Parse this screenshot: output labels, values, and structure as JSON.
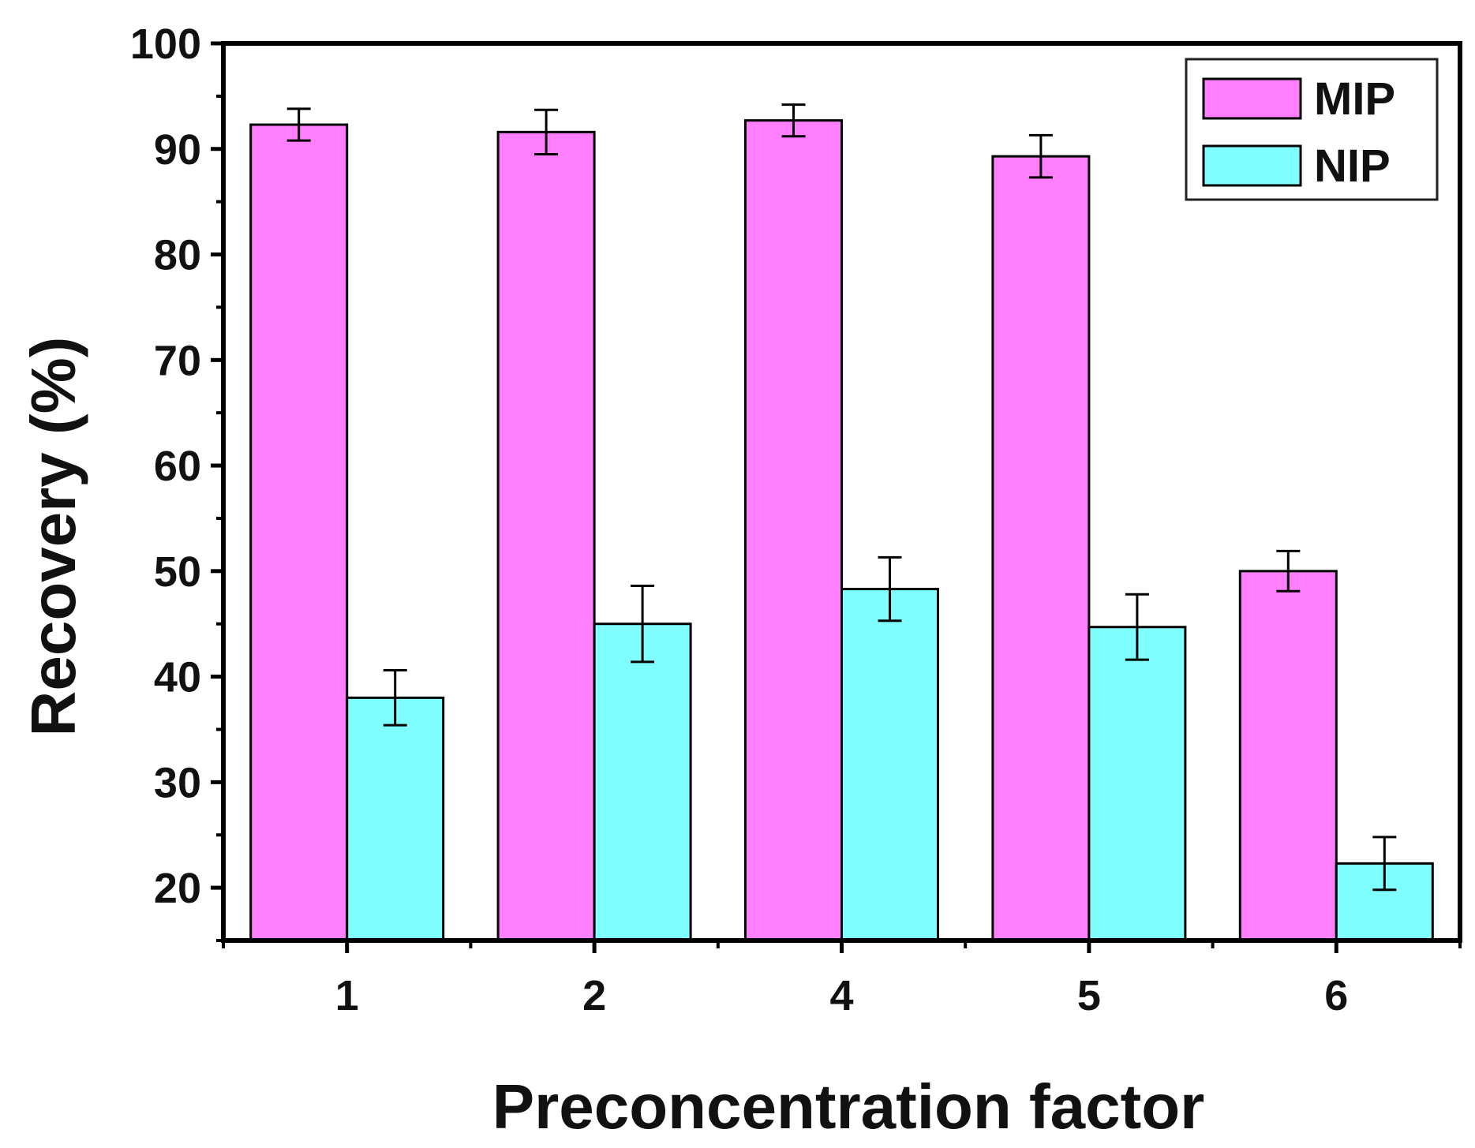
{
  "chart_data": {
    "type": "bar",
    "title": "",
    "xlabel": "Preconcentration factor",
    "ylabel": "Recovery (%)",
    "categories": [
      "1",
      "2",
      "4",
      "5",
      "6"
    ],
    "ylim": [
      15,
      100
    ],
    "yticks": [
      20,
      30,
      40,
      50,
      60,
      70,
      80,
      90,
      100
    ],
    "yticklabels": [
      "20",
      "30",
      "40",
      "50",
      "60",
      "70",
      "80",
      "90",
      "100"
    ],
    "y_minor_step": 5,
    "grid": false,
    "legend_position": "top-right",
    "series": [
      {
        "name": "MIP",
        "color": "#ff7fff",
        "values": [
          92.3,
          91.6,
          92.7,
          89.3,
          50.0
        ],
        "errors": [
          1.5,
          2.1,
          1.5,
          2.0,
          1.9
        ]
      },
      {
        "name": "NIP",
        "color": "#7fffff",
        "values": [
          38.0,
          45.0,
          48.3,
          44.7,
          22.3
        ],
        "errors": [
          2.6,
          3.6,
          3.0,
          3.1,
          2.5
        ]
      }
    ]
  }
}
